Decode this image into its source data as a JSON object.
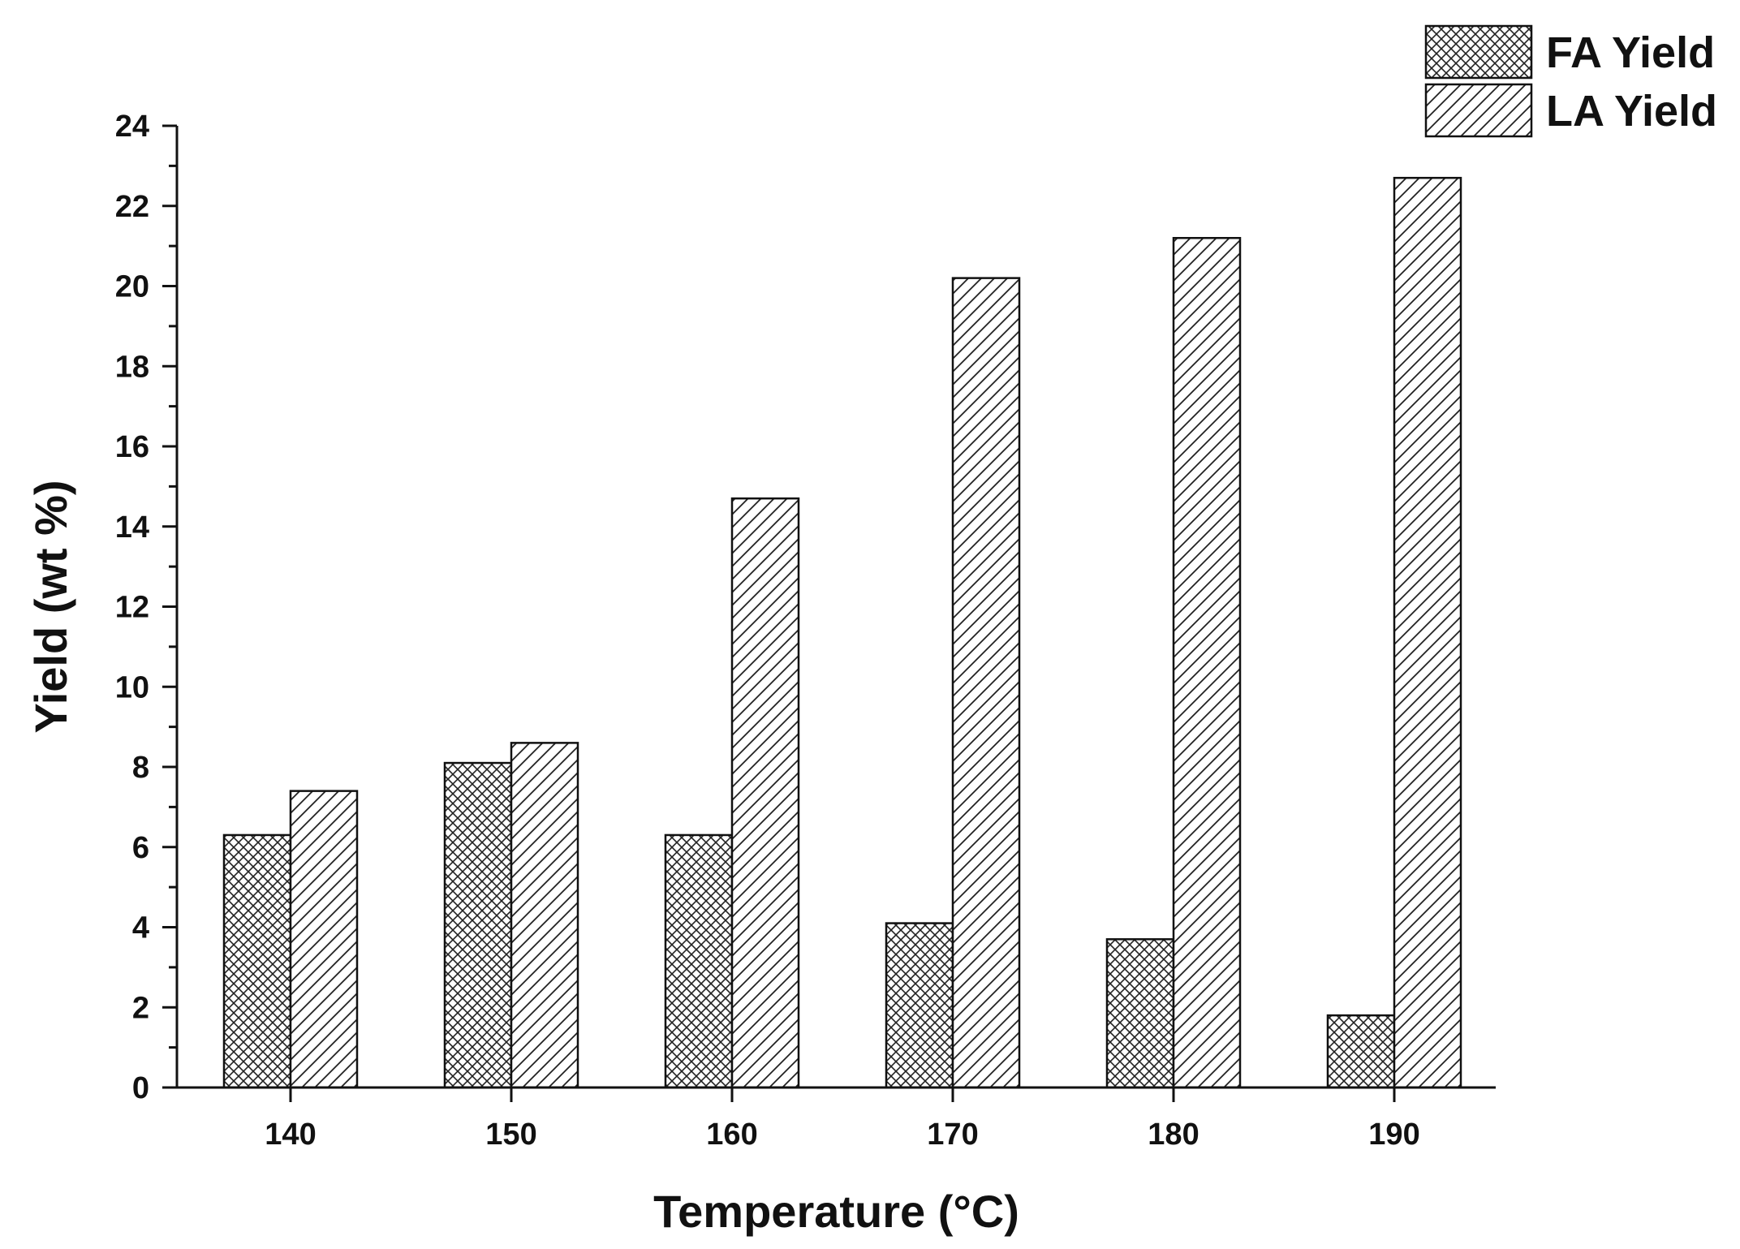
{
  "chart_data": {
    "type": "bar",
    "title": "",
    "xlabel": "Temperature (°C)",
    "ylabel": "Yield (wt %)",
    "categories": [
      "140",
      "150",
      "160",
      "170",
      "180",
      "190"
    ],
    "series": [
      {
        "name": "FA Yield",
        "pattern": "crosshatch",
        "values": [
          6.3,
          8.1,
          6.3,
          4.1,
          3.7,
          1.8
        ]
      },
      {
        "name": "LA Yield",
        "pattern": "diagonal",
        "values": [
          7.4,
          8.6,
          14.7,
          20.2,
          21.2,
          22.7
        ]
      }
    ],
    "ylim": [
      0,
      24
    ],
    "yticks": [
      "0",
      "2",
      "4",
      "6",
      "8",
      "10",
      "12",
      "14",
      "16",
      "18",
      "20",
      "22",
      "24"
    ],
    "grid": false,
    "legend_position": "top-right",
    "colors": {
      "ink": "#111111",
      "fill": "#ffffff"
    }
  }
}
